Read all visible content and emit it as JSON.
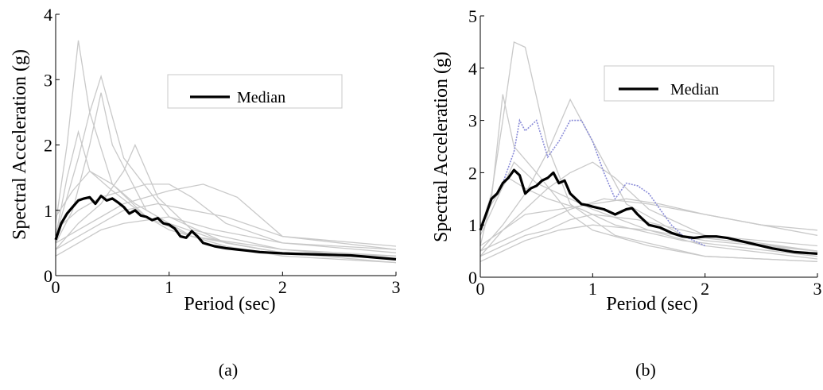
{
  "chart_data": [
    {
      "type": "line",
      "panel": "(a)",
      "xlabel": "Period (sec)",
      "ylabel": "Spectral Acceleration (g)",
      "xlim": [
        0,
        3
      ],
      "ylim": [
        0,
        4
      ],
      "xticks": [
        "0",
        "1",
        "2",
        "3"
      ],
      "yticks": [
        "0",
        "1",
        "2",
        "3",
        "4"
      ],
      "legend": {
        "placement": "top-right",
        "entries": [
          "Median"
        ]
      },
      "grid": false,
      "series": [
        {
          "name": "Median",
          "color": "#000000",
          "x": [
            0,
            0.05,
            0.1,
            0.15,
            0.2,
            0.25,
            0.3,
            0.35,
            0.4,
            0.45,
            0.5,
            0.55,
            0.6,
            0.65,
            0.7,
            0.75,
            0.8,
            0.85,
            0.9,
            0.95,
            1.0,
            1.05,
            1.1,
            1.15,
            1.2,
            1.25,
            1.3,
            1.4,
            1.5,
            1.6,
            1.7,
            1.8,
            1.9,
            2.0,
            2.2,
            2.4,
            2.6,
            2.8,
            3.0
          ],
          "y": [
            0.55,
            0.8,
            0.95,
            1.05,
            1.15,
            1.18,
            1.2,
            1.1,
            1.22,
            1.15,
            1.18,
            1.12,
            1.05,
            0.95,
            1.0,
            0.92,
            0.9,
            0.85,
            0.88,
            0.8,
            0.78,
            0.72,
            0.6,
            0.58,
            0.68,
            0.6,
            0.5,
            0.45,
            0.42,
            0.4,
            0.38,
            0.36,
            0.35,
            0.34,
            0.33,
            0.32,
            0.31,
            0.28,
            0.25
          ]
        }
      ],
      "background_series": [
        {
          "x": [
            0,
            0.1,
            0.2,
            0.3,
            0.5,
            0.8,
            1.2,
            2,
            3
          ],
          "y": [
            0.8,
            2.0,
            3.6,
            2.5,
            1.4,
            0.9,
            0.6,
            0.4,
            0.3
          ]
        },
        {
          "x": [
            0,
            0.1,
            0.2,
            0.3,
            0.4,
            0.6,
            1.0,
            1.5,
            2,
            3
          ],
          "y": [
            0.6,
            1.2,
            1.8,
            2.5,
            3.05,
            1.8,
            0.9,
            0.5,
            0.35,
            0.25
          ]
        },
        {
          "x": [
            0,
            0.15,
            0.3,
            0.4,
            0.5,
            0.8,
            1.2,
            2,
            3
          ],
          "y": [
            0.5,
            1.0,
            2.0,
            2.8,
            2.0,
            1.0,
            0.6,
            0.35,
            0.2
          ]
        },
        {
          "x": [
            0,
            0.2,
            0.4,
            0.6,
            0.7,
            0.9,
            1.2,
            2,
            3
          ],
          "y": [
            0.4,
            0.8,
            1.1,
            1.6,
            2.0,
            1.2,
            0.7,
            0.4,
            0.25
          ]
        },
        {
          "x": [
            0,
            0.2,
            0.4,
            0.6,
            0.8,
            1.0,
            1.2,
            1.5,
            2,
            3
          ],
          "y": [
            0.7,
            1.0,
            1.2,
            1.3,
            1.4,
            1.4,
            1.2,
            0.8,
            0.5,
            0.35
          ]
        },
        {
          "x": [
            0,
            0.2,
            0.4,
            0.6,
            0.8,
            1.0,
            1.3,
            1.6,
            2,
            3
          ],
          "y": [
            0.5,
            0.7,
            0.9,
            1.1,
            1.2,
            1.3,
            1.4,
            1.2,
            0.6,
            0.4
          ]
        },
        {
          "x": [
            0,
            0.1,
            0.2,
            0.3,
            0.5,
            0.8,
            1.0,
            1.5,
            2,
            3
          ],
          "y": [
            0.6,
            1.5,
            2.2,
            1.6,
            1.3,
            0.9,
            0.7,
            0.45,
            0.3,
            0.2
          ]
        },
        {
          "x": [
            0,
            0.2,
            0.4,
            0.6,
            0.9,
            1.2,
            1.5,
            2,
            3
          ],
          "y": [
            0.4,
            0.6,
            0.8,
            1.0,
            1.1,
            1.0,
            0.9,
            0.6,
            0.45
          ]
        },
        {
          "x": [
            0,
            0.15,
            0.3,
            0.5,
            0.7,
            1.0,
            1.5,
            2,
            3
          ],
          "y": [
            0.9,
            1.3,
            1.6,
            1.4,
            1.1,
            0.8,
            0.5,
            0.35,
            0.3
          ]
        },
        {
          "x": [
            0,
            0.2,
            0.4,
            0.6,
            1.0,
            1.4,
            2,
            3
          ],
          "y": [
            0.3,
            0.5,
            0.7,
            0.8,
            0.9,
            0.7,
            0.5,
            0.4
          ]
        }
      ]
    },
    {
      "type": "line",
      "panel": "(b)",
      "xlabel": "Period (sec)",
      "ylabel": "Spectral Acceleration (g)",
      "xlim": [
        0,
        3
      ],
      "ylim": [
        0,
        5
      ],
      "xticks": [
        "0",
        "1",
        "2",
        "3"
      ],
      "yticks": [
        "0",
        "1",
        "2",
        "3",
        "4",
        "5"
      ],
      "legend": {
        "placement": "top-right",
        "entries": [
          "Median"
        ]
      },
      "grid": false,
      "series": [
        {
          "name": "Median",
          "color": "#000000",
          "x": [
            0,
            0.05,
            0.1,
            0.15,
            0.2,
            0.25,
            0.3,
            0.35,
            0.4,
            0.45,
            0.5,
            0.55,
            0.6,
            0.65,
            0.7,
            0.75,
            0.8,
            0.85,
            0.9,
            0.95,
            1.0,
            1.1,
            1.2,
            1.3,
            1.35,
            1.4,
            1.5,
            1.6,
            1.7,
            1.8,
            1.9,
            2.0,
            2.1,
            2.2,
            2.4,
            2.6,
            2.8,
            3.0
          ],
          "y": [
            0.9,
            1.2,
            1.5,
            1.6,
            1.8,
            1.9,
            2.05,
            1.95,
            1.6,
            1.7,
            1.75,
            1.85,
            1.9,
            2.0,
            1.8,
            1.85,
            1.6,
            1.5,
            1.4,
            1.38,
            1.35,
            1.3,
            1.2,
            1.3,
            1.32,
            1.2,
            1.0,
            0.95,
            0.85,
            0.78,
            0.75,
            0.78,
            0.78,
            0.75,
            0.65,
            0.55,
            0.48,
            0.45
          ]
        }
      ],
      "highlight_series": {
        "color": "#8a8cd8",
        "x": [
          0.2,
          0.3,
          0.35,
          0.4,
          0.5,
          0.6,
          0.7,
          0.8,
          0.9,
          1.0,
          1.1,
          1.2,
          1.3,
          1.4,
          1.5,
          1.6,
          1.7,
          1.8,
          1.9,
          2.0
        ],
        "y": [
          1.8,
          2.4,
          3.0,
          2.8,
          3.0,
          2.3,
          2.6,
          3.0,
          3.0,
          2.6,
          2.0,
          1.5,
          1.8,
          1.75,
          1.6,
          1.3,
          1.0,
          0.8,
          0.7,
          0.6
        ]
      },
      "background_series": [
        {
          "x": [
            0,
            0.1,
            0.2,
            0.3,
            0.4,
            0.6,
            0.8,
            1.2,
            2,
            3
          ],
          "y": [
            0.9,
            1.6,
            3.0,
            4.5,
            4.4,
            2.5,
            1.4,
            0.8,
            0.4,
            0.3
          ]
        },
        {
          "x": [
            0,
            0.1,
            0.2,
            0.3,
            0.5,
            0.8,
            1.0,
            1.5,
            2,
            3
          ],
          "y": [
            0.6,
            1.5,
            3.5,
            2.5,
            2.0,
            1.2,
            0.9,
            0.6,
            0.4,
            0.3
          ]
        },
        {
          "x": [
            0,
            0.2,
            0.4,
            0.6,
            0.8,
            1.0,
            1.3,
            1.8,
            3
          ],
          "y": [
            0.5,
            1.0,
            1.6,
            2.4,
            3.4,
            2.6,
            1.4,
            0.8,
            0.5
          ]
        },
        {
          "x": [
            0,
            0.2,
            0.4,
            0.6,
            0.8,
            1.0,
            1.2,
            1.5,
            2,
            3
          ],
          "y": [
            0.4,
            0.9,
            1.3,
            1.7,
            2.0,
            2.2,
            1.9,
            1.3,
            0.8,
            0.5
          ]
        },
        {
          "x": [
            0,
            0.2,
            0.4,
            0.7,
            1.0,
            1.3,
            1.6,
            2,
            2.5,
            3
          ],
          "y": [
            0.6,
            0.9,
            1.2,
            1.3,
            1.4,
            1.5,
            1.4,
            1.2,
            1.0,
            0.9
          ]
        },
        {
          "x": [
            0,
            0.15,
            0.3,
            0.5,
            0.7,
            1.0,
            1.5,
            2,
            3
          ],
          "y": [
            0.8,
            1.5,
            2.2,
            1.8,
            1.6,
            1.3,
            0.9,
            0.6,
            0.35
          ]
        },
        {
          "x": [
            0,
            0.2,
            0.4,
            0.6,
            0.8,
            1.0,
            1.4,
            2,
            3
          ],
          "y": [
            0.4,
            0.6,
            0.8,
            0.9,
            1.1,
            1.2,
            1.1,
            0.8,
            0.6
          ]
        },
        {
          "x": [
            0,
            0.1,
            0.25,
            0.4,
            0.6,
            0.9,
            1.2,
            1.8,
            3
          ],
          "y": [
            1.0,
            1.4,
            1.9,
            1.7,
            1.5,
            1.3,
            1.0,
            0.7,
            0.4
          ]
        },
        {
          "x": [
            0,
            0.2,
            0.5,
            0.8,
            1.1,
            1.5,
            2,
            2.5,
            3
          ],
          "y": [
            0.5,
            0.7,
            1.0,
            1.3,
            1.5,
            1.4,
            1.2,
            1.0,
            0.8
          ]
        },
        {
          "x": [
            0,
            0.2,
            0.4,
            0.7,
            1.0,
            1.5,
            2,
            3
          ],
          "y": [
            0.3,
            0.5,
            0.7,
            0.9,
            1.0,
            0.9,
            0.7,
            0.5
          ]
        }
      ]
    }
  ]
}
